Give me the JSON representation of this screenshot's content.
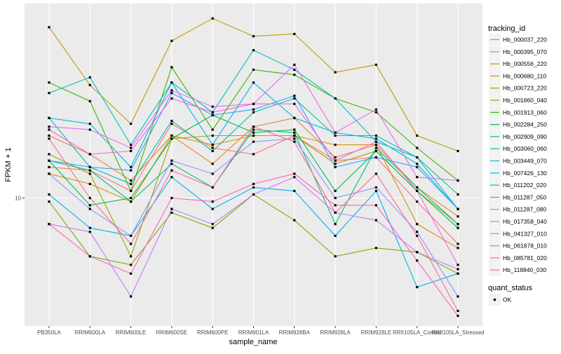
{
  "chart_data": {
    "type": "line",
    "title": "",
    "xlabel": "sample_name",
    "ylabel": "FPKM + 1",
    "yscale": "log10",
    "ylim": [
      7,
      17.2
    ],
    "yticks": [
      10
    ],
    "ytick_labels": [
      "10"
    ],
    "grid": true,
    "legend_placement": "right",
    "categories": [
      "PB350LA",
      "RRIM600LA",
      "RRIM600LE",
      "RRIM600SE",
      "RRIM600PE",
      "RRIM901LA",
      "RRIM928BA",
      "RRIM928LA",
      "RRIM928LE",
      "RRII105LA_Control",
      "RRII105LA_Stressed"
    ],
    "legend_title": "tracking_id",
    "series": [
      {
        "name": "Hb_000037_220",
        "color": "#F8766D",
        "values": [
          10.9,
          10.8,
          10.2,
          12.3,
          11.5,
          11.3,
          11.9,
          11.1,
          11.2,
          9.9,
          8.8
        ]
      },
      {
        "name": "Hb_000395_070",
        "color": "#EA8331",
        "values": [
          11.9,
          11.3,
          10.5,
          11.9,
          11.0,
          12.2,
          12.5,
          11.2,
          11.6,
          10.3,
          9.5
        ]
      },
      {
        "name": "Hb_000556_220",
        "color": "#D89000",
        "values": [
          10.7,
          10.4,
          9.9,
          11.9,
          11.6,
          11.9,
          11.9,
          11.6,
          11.6,
          9.3,
          8.7
        ]
      },
      {
        "name": "Hb_000680_110",
        "color": "#C09B00",
        "values": [
          16.1,
          13.7,
          12.3,
          15.5,
          16.5,
          15.7,
          15.8,
          14.2,
          14.5,
          11.9,
          11.4
        ]
      },
      {
        "name": "Hb_000723_220",
        "color": "#A3A500",
        "values": [
          11.3,
          10.7,
          8.5,
          11.8,
          11.9,
          11.9,
          11.9,
          11.0,
          11.4,
          10.2,
          9.3
        ]
      },
      {
        "name": "Hb_001860_040",
        "color": "#7CAE00",
        "values": [
          9.9,
          8.5,
          8.3,
          9.6,
          9.2,
          10.1,
          9.4,
          8.5,
          8.7,
          8.6,
          8.1
        ]
      },
      {
        "name": "Hb_001913_060",
        "color": "#39B600",
        "values": [
          13.8,
          13.1,
          10.2,
          14.4,
          12.1,
          14.3,
          14.1,
          13.2,
          12.7,
          11.5,
          10.5
        ]
      },
      {
        "name": "Hb_002284_250",
        "color": "#00BB4E",
        "values": [
          11.1,
          9.8,
          10.0,
          11.8,
          12.6,
          12.0,
          12.1,
          10.2,
          11.4,
          10.2,
          9.2
        ]
      },
      {
        "name": "Hb_002909_090",
        "color": "#00BF7D",
        "values": [
          11.1,
          10.8,
          9.9,
          11.0,
          10.3,
          12.1,
          12.0,
          9.3,
          11.5,
          10.3,
          9.3
        ]
      },
      {
        "name": "Hb_003060_060",
        "color": "#00C1A3",
        "values": [
          12.5,
          10.9,
          10.4,
          12.4,
          11.4,
          12.7,
          13.2,
          11.9,
          11.9,
          11.2,
          10.1
        ]
      },
      {
        "name": "Hb_003449_070",
        "color": "#00BFC4",
        "values": [
          13.4,
          14.0,
          11.6,
          13.8,
          12.7,
          15.1,
          14.3,
          13.2,
          11.7,
          11.2,
          9.7
        ]
      },
      {
        "name": "Hb_007426_130",
        "color": "#00BAE0",
        "values": [
          12.5,
          12.3,
          10.9,
          13.8,
          11.6,
          13.8,
          12.5,
          12.0,
          11.8,
          11.0,
          9.7
        ]
      },
      {
        "name": "Hb_011202_020",
        "color": "#00B0F6",
        "values": [
          10.1,
          9.2,
          9.0,
          10.6,
          9.7,
          10.3,
          10.2,
          9.0,
          10.2,
          7.8,
          8.1
        ]
      },
      {
        "name": "Hb_011287_050",
        "color": "#35A2FF",
        "values": [
          11.1,
          10.9,
          10.8,
          13.4,
          12.6,
          12.8,
          13.3,
          10.9,
          11.2,
          10.9,
          9.7
        ]
      },
      {
        "name": "Hb_011287_080",
        "color": "#9590FF",
        "values": [
          10.7,
          9.7,
          9.0,
          11.1,
          10.7,
          11.7,
          11.8,
          10.0,
          10.3,
          9.1,
          7.6
        ]
      },
      {
        "name": "Hb_017358_040",
        "color": "#C77CFF",
        "values": [
          9.3,
          9.1,
          7.6,
          9.7,
          9.3,
          10.1,
          10.6,
          9.6,
          9.4,
          8.6,
          8.2
        ]
      },
      {
        "name": "Hb_041327_010",
        "color": "#E76BF3",
        "values": [
          12.2,
          12.1,
          11.5,
          13.5,
          12.9,
          13.0,
          14.5,
          12.0,
          12.8,
          10.6,
          10.5
        ]
      },
      {
        "name": "Hb_061878_010",
        "color": "#FA62DB",
        "values": [
          12.1,
          11.3,
          11.4,
          13.2,
          12.7,
          13.0,
          13.0,
          11.1,
          11.7,
          10.2,
          8.3
        ]
      },
      {
        "name": "Hb_085781_020",
        "color": "#FF62BC",
        "values": [
          9.3,
          8.5,
          8.1,
          10.0,
          9.9,
          10.4,
          10.7,
          9.8,
          9.8,
          8.4,
          7.2
        ]
      },
      {
        "name": "Hb_118840_030",
        "color": "#FF6C91",
        "values": [
          11.8,
          10.0,
          8.8,
          10.8,
          10.3,
          12.2,
          11.7,
          9.6,
          10.7,
          9.0,
          7.3
        ]
      }
    ],
    "shape_legend": {
      "title": "quant_status",
      "items": [
        "OK"
      ]
    }
  },
  "colors": {
    "panel": "#EBEBEB",
    "grid": "#FFFFFF",
    "point": "#000000",
    "legend_key": "#F2F2F2"
  }
}
